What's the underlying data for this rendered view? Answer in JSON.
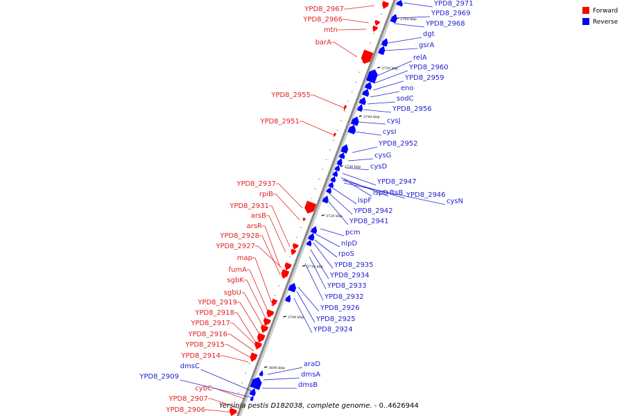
{
  "legend": [
    {
      "label": "Forward",
      "color": "#ff0000"
    },
    {
      "label": "Reverse",
      "color": "#0000ff"
    }
  ],
  "caption": {
    "organism": "Yersinia pestis D182038, complete genome.",
    "range": " - 0..4626944"
  },
  "colors": {
    "forward": "#ff0000",
    "forward_label": "#e02020",
    "reverse": "#0000ff",
    "reverse_label": "#2020d0",
    "backbone": "#888888"
  },
  "ticks": [
    "3760 kbp",
    "3750 kbp",
    "3740 kbp",
    "3730 kbp",
    "3720 kbp",
    "3710 kbp",
    "3700 kbp",
    "3690 kbp"
  ],
  "forward_genes": [
    "YPD8_2967",
    "YPD8_2966",
    "mtn",
    "barA",
    "YPD8_2955",
    "YPD8_2951",
    "YPD8_2937",
    "rpiB",
    "YPD8_2931",
    "arsB",
    "arsR",
    "YPD8_2928",
    "YPD8_2927",
    "map",
    "fumA",
    "sgbK",
    "sgbU",
    "YPD8_2919",
    "YPD8_2918",
    "YPD8_2917",
    "YPD8_2916",
    "YPD8_2915",
    "YPD8_2914",
    "cybC",
    "YPD8_2907",
    "YPD8_2906"
  ],
  "reverse_genes": [
    "YPD8_2971",
    "YPD8_2969",
    "YPD8_2968",
    "dgt",
    "gsrA",
    "relA",
    "YPD8_2960",
    "YPD8_2959",
    "eno",
    "sodC",
    "YPD8_2956",
    "cysJ",
    "cysI",
    "YPD8_2952",
    "cysG",
    "cysD",
    "YPD8_2947",
    "ispD",
    "ftsB",
    "YPD8_2946",
    "cysN",
    "ispF",
    "YPD8_2942",
    "YPD8_2941",
    "pcm",
    "nlpD",
    "rpoS",
    "YPD8_2935",
    "YPD8_2934",
    "YPD8_2933",
    "YPD8_2932",
    "YPD8_2926",
    "YPD8_2925",
    "YPD8_2924",
    "araD",
    "dmsA",
    "dmsB",
    "dmsC",
    "YPD8_2909"
  ]
}
